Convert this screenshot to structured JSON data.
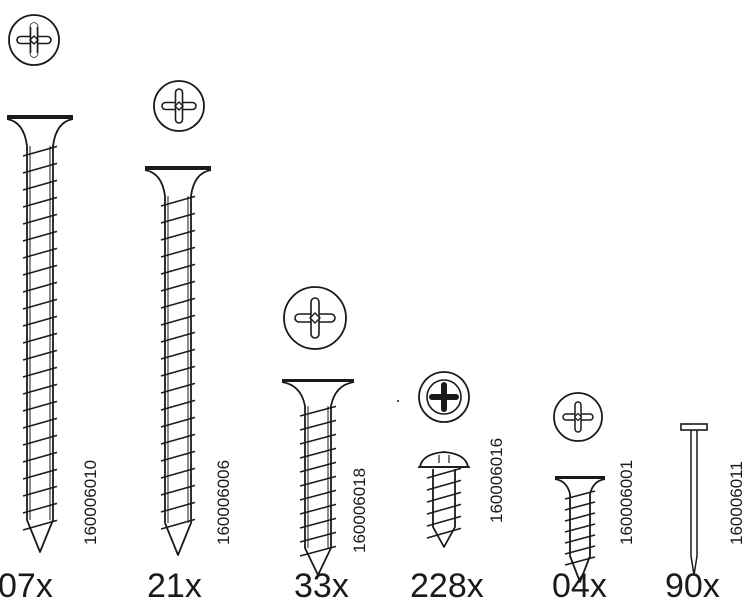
{
  "parts": [
    {
      "code": "160006010",
      "qty": "07x",
      "type": "countersunk-screw",
      "head_icon": "phillips-head-icon"
    },
    {
      "code": "160006006",
      "qty": "21x",
      "type": "countersunk-screw",
      "head_icon": "phillips-head-icon"
    },
    {
      "code": "160006018",
      "qty": "33x",
      "type": "countersunk-screw",
      "head_icon": "phillips-head-icon"
    },
    {
      "code": "160006016",
      "qty": "228x",
      "type": "pan-head-screw",
      "head_icon": "phillips-head-icon"
    },
    {
      "code": "160006001",
      "qty": "04x",
      "type": "countersunk-screw",
      "head_icon": "phillips-head-icon"
    },
    {
      "code": "160006011",
      "qty": "90x",
      "type": "nail",
      "head_icon": ""
    }
  ],
  "colors": {
    "line": "#1a1a1a",
    "background": "#ffffff"
  }
}
